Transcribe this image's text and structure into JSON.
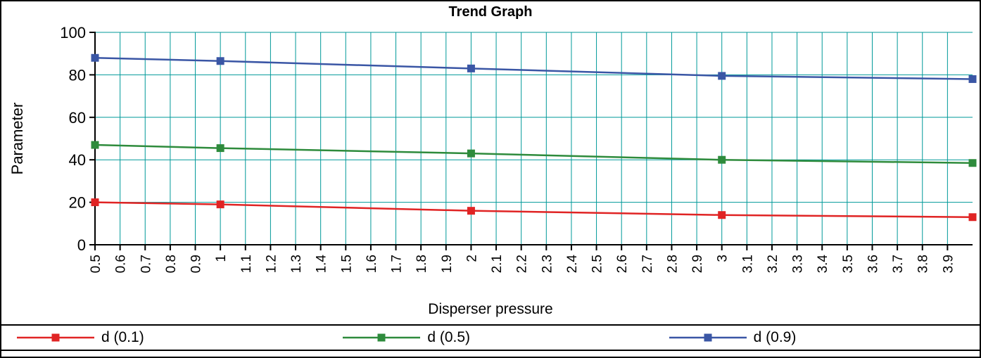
{
  "chart_data": {
    "type": "line",
    "title": "Trend Graph",
    "xlabel": "Disperser pressure",
    "ylabel": "Parameter",
    "xlim": [
      0.5,
      4.0
    ],
    "ylim": [
      0,
      100
    ],
    "y_ticks": [
      0,
      20,
      40,
      60,
      80,
      100
    ],
    "x_tick_labels": [
      "0.5",
      "0.6",
      "0.7",
      "0.8",
      "0.9",
      "1",
      "1.1",
      "1.2",
      "1.3",
      "1.4",
      "1.5",
      "1.6",
      "1.7",
      "1.8",
      "1.9",
      "2",
      "2.1",
      "2.2",
      "2.3",
      "2.4",
      "2.5",
      "2.6",
      "2.7",
      "2.8",
      "2.9",
      "3",
      "3.1",
      "3.2",
      "3.3",
      "3.4",
      "3.5",
      "3.6",
      "3.7",
      "3.8",
      "3.9"
    ],
    "grid": true,
    "grid_color": "#009999",
    "axis_color": "#000000",
    "legend_position": "bottom",
    "x": [
      0.5,
      1,
      2,
      3,
      4
    ],
    "series": [
      {
        "name": "d (0.1)",
        "color": "#e02424",
        "values": [
          20,
          19,
          16,
          14,
          13
        ]
      },
      {
        "name": "d (0.5)",
        "color": "#2e8b3c",
        "values": [
          47,
          45.5,
          43,
          40,
          38.5
        ]
      },
      {
        "name": "d (0.9)",
        "color": "#3a56a5",
        "values": [
          88,
          86.5,
          83,
          79.5,
          78
        ]
      }
    ]
  }
}
